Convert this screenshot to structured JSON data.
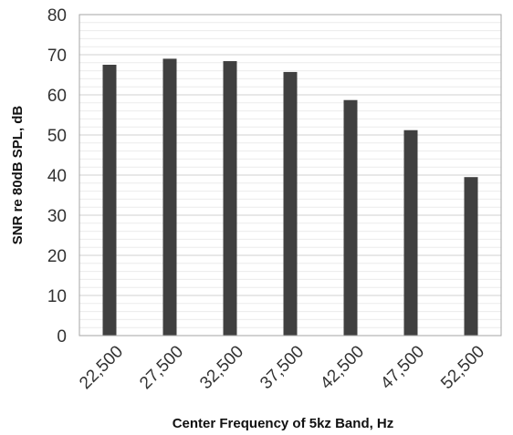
{
  "chart_data": {
    "type": "bar",
    "title": "",
    "xlabel": "Center Frequency of 5kz Band, Hz",
    "ylabel": "SNR re 80dB SPL, dB",
    "categories": [
      "22,500",
      "27,500",
      "32,500",
      "37,500",
      "42,500",
      "47,500",
      "52,500"
    ],
    "values": [
      67.5,
      69,
      68.4,
      65.7,
      58.7,
      51.2,
      39.5
    ],
    "ylim": [
      0,
      80
    ],
    "yticks": [
      "0",
      "10",
      "20",
      "30",
      "40",
      "50",
      "60",
      "70",
      "80"
    ],
    "grid": true,
    "legend": "none",
    "colors": {
      "bar": "#404040",
      "grid_major": "#d0d0d0",
      "grid_minor": "#ececec",
      "frame": "#a6a6a6"
    }
  }
}
